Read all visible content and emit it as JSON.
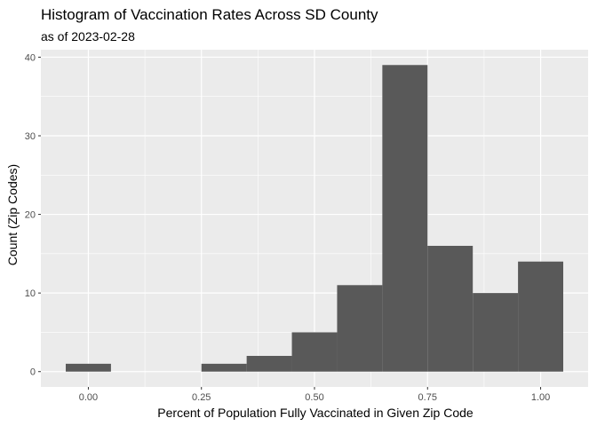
{
  "chart_data": {
    "type": "histogram",
    "title": "Histogram of Vaccination Rates Across SD County",
    "subtitle": "as of 2023-02-28",
    "xlabel": "Percent of Population Fully Vaccinated in Given Zip Code",
    "ylabel": "Count (Zip Codes)",
    "bin_width": 0.1,
    "bins": [
      {
        "start": -0.05,
        "end": 0.05,
        "count": 1
      },
      {
        "start": 0.05,
        "end": 0.15,
        "count": 0
      },
      {
        "start": 0.15,
        "end": 0.25,
        "count": 0
      },
      {
        "start": 0.25,
        "end": 0.35,
        "count": 1
      },
      {
        "start": 0.35,
        "end": 0.45,
        "count": 2
      },
      {
        "start": 0.45,
        "end": 0.55,
        "count": 5
      },
      {
        "start": 0.55,
        "end": 0.65,
        "count": 11
      },
      {
        "start": 0.65,
        "end": 0.75,
        "count": 39
      },
      {
        "start": 0.75,
        "end": 0.85,
        "count": 16
      },
      {
        "start": 0.85,
        "end": 0.95,
        "count": 10
      },
      {
        "start": 0.95,
        "end": 1.05,
        "count": 14
      }
    ],
    "xlim": [
      -0.105,
      1.105
    ],
    "ylim": [
      -1.95,
      40.95
    ],
    "x_ticks": [
      0.0,
      0.25,
      0.5,
      0.75,
      1.0
    ],
    "x_tick_labels": [
      "0.00",
      "0.25",
      "0.50",
      "0.75",
      "1.00"
    ],
    "y_ticks": [
      0,
      10,
      20,
      30,
      40
    ],
    "y_tick_labels": [
      "0",
      "10",
      "20",
      "30",
      "40"
    ],
    "grid": true,
    "colors": {
      "panel_background": "#ebebeb",
      "grid_major": "#ffffff",
      "bar_fill": "#595959"
    }
  }
}
